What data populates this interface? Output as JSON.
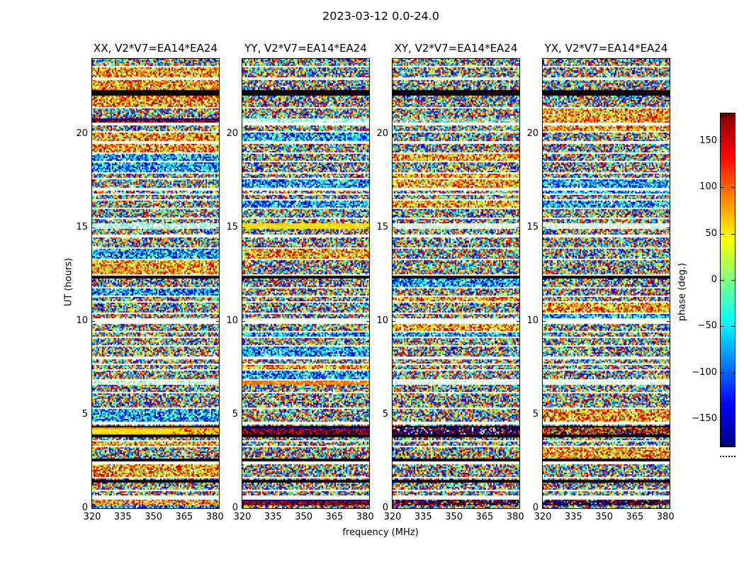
{
  "figure": {
    "title": "2023-03-12 0.0-24.0",
    "background": "#ffffff",
    "text_color": "#000000"
  },
  "chart_data": {
    "type": "heatmap",
    "description": "Visibility phase waterfall plots (frequency vs UT) for baseline V2*V7=EA14*EA24, four polarization products, phase noise colored with jet colormap, with white scan gaps, black flagged rows and colored RFI bands",
    "panels": [
      {
        "pol": "XX",
        "label": "XX, V2*V7=EA14*EA24"
      },
      {
        "pol": "YY",
        "label": "YY, V2*V7=EA14*EA24"
      },
      {
        "pol": "XY",
        "label": "XY, V2*V7=EA14*EA24"
      },
      {
        "pol": "YX",
        "label": "YX, V2*V7=EA14*EA24"
      }
    ],
    "xlabel": "frequency (MHz)",
    "ylabel": "UT (hours)",
    "xlim": [
      320,
      382
    ],
    "xticks": [
      320,
      335,
      350,
      365,
      380
    ],
    "ylim": [
      0,
      24
    ],
    "yticks": [
      0,
      5,
      10,
      15,
      20
    ],
    "colorbar": {
      "label": "phase (deg.)",
      "min": -180,
      "max": 180,
      "ticks": [
        150,
        100,
        50,
        0,
        -50,
        -100,
        -150
      ],
      "tick_labels": [
        "150",
        "100",
        "50",
        "0",
        "−50",
        "−100",
        "−150"
      ],
      "colormap": "jet",
      "stops": [
        "#000080",
        "#0000ff",
        "#00ffff",
        "#ffff00",
        "#ff0000",
        "#800000"
      ]
    },
    "features": [
      {
        "ut": [
          22.85,
          23.05
        ],
        "styles": [
          "pale",
          "pale",
          "pale",
          "pale"
        ]
      },
      {
        "ut": [
          22.05,
          22.3
        ],
        "styles": [
          "black",
          "black",
          "black",
          "black"
        ]
      },
      {
        "ut": [
          20.62,
          20.85
        ],
        "styles": [
          "navy-darkred",
          "pale-cyan",
          "cyan-red-mix",
          "warm-mix"
        ]
      },
      {
        "ut": [
          20.45,
          20.6
        ],
        "styles": [
          "white",
          "white",
          "white",
          "white"
        ]
      },
      {
        "ut": [
          14.95,
          15.25
        ],
        "styles": [
          "pale-cyan",
          "yellow",
          "pale",
          "pale"
        ]
      },
      {
        "ut": [
          12.28,
          12.45
        ],
        "styles": [
          "black",
          "black",
          "black",
          "black"
        ]
      },
      {
        "ut": [
          9.83,
          10.05
        ],
        "styles": [
          "white",
          "white",
          "white",
          "white"
        ]
      },
      {
        "ut": [
          6.62,
          6.82
        ],
        "styles": [
          "pale-green",
          "orange",
          "pale",
          "pale"
        ]
      },
      {
        "ut": [
          4.28,
          4.4
        ],
        "styles": [
          "black",
          "black",
          "black",
          "black"
        ]
      },
      {
        "ut": [
          3.92,
          4.28
        ],
        "styles": [
          "orange-yellow",
          "navy-darkred",
          "navy-darkred-mix",
          "dark-warm-mix"
        ]
      },
      {
        "ut": [
          3.78,
          3.92
        ],
        "styles": [
          "black",
          "black",
          "black",
          "black"
        ]
      },
      {
        "ut": [
          2.5,
          2.66
        ],
        "styles": [
          "black",
          "black",
          "black",
          "black"
        ]
      },
      {
        "ut": [
          1.34,
          1.52
        ],
        "styles": [
          "black",
          "black",
          "black",
          "black"
        ]
      },
      {
        "ut": [
          0.47,
          0.62
        ],
        "styles": [
          "white",
          "white",
          "white",
          "white"
        ]
      },
      {
        "ut": [
          0.17,
          0.47
        ],
        "styles": [
          "warm-noise",
          "navy-darkred",
          "dark-mix",
          "dark-mix"
        ]
      }
    ]
  }
}
